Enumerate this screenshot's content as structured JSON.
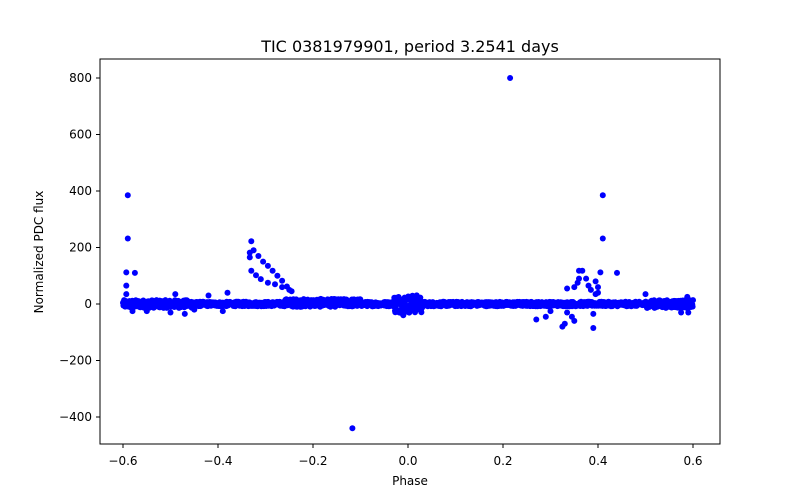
{
  "chart_data": {
    "type": "scatter",
    "title": "TIC 0381979901, period 3.2541 days",
    "xlabel": "Phase",
    "ylabel": "Normalized PDC flux",
    "xlim": [
      -0.66,
      0.66
    ],
    "ylim": [
      -500,
      860
    ],
    "xticks": [
      "-0.6",
      "-0.4",
      "-0.2",
      "0.0",
      "0.2",
      "0.4",
      "0.6"
    ],
    "xtick_values": [
      -0.6,
      -0.4,
      -0.2,
      0.0,
      0.2,
      0.4,
      0.6
    ],
    "yticks": [
      "-400",
      "-200",
      "0",
      "200",
      "400",
      "600",
      "800"
    ],
    "ytick_values": [
      -400,
      -200,
      0,
      200,
      400,
      600,
      800
    ],
    "grid": false,
    "legend": null,
    "marker_color": "#0000ff",
    "series": [
      {
        "name": "PDC flux",
        "baseline": {
          "x_range": [
            -0.6,
            0.6
          ],
          "center": 0,
          "scatter": 12
        },
        "outliers": [
          {
            "x": 0.215,
            "y": 800
          },
          {
            "x": -0.117,
            "y": -440
          },
          {
            "x": -0.59,
            "y": 385
          },
          {
            "x": -0.59,
            "y": 232
          },
          {
            "x": -0.593,
            "y": 112
          },
          {
            "x": -0.593,
            "y": 65
          },
          {
            "x": -0.593,
            "y": 35
          },
          {
            "x": -0.575,
            "y": 110
          },
          {
            "x": 0.41,
            "y": 385
          },
          {
            "x": 0.41,
            "y": 232
          },
          {
            "x": 0.44,
            "y": 110
          },
          {
            "x": 0.405,
            "y": 112
          },
          {
            "x": -0.33,
            "y": 222
          },
          {
            "x": -0.333,
            "y": 182
          },
          {
            "x": -0.333,
            "y": 165
          },
          {
            "x": -0.325,
            "y": 190
          },
          {
            "x": -0.315,
            "y": 170
          },
          {
            "x": -0.305,
            "y": 150
          },
          {
            "x": -0.295,
            "y": 135
          },
          {
            "x": -0.285,
            "y": 118
          },
          {
            "x": -0.275,
            "y": 100
          },
          {
            "x": -0.265,
            "y": 82
          },
          {
            "x": -0.255,
            "y": 62
          },
          {
            "x": -0.245,
            "y": 45
          },
          {
            "x": -0.33,
            "y": 118
          },
          {
            "x": -0.32,
            "y": 102
          },
          {
            "x": -0.31,
            "y": 88
          },
          {
            "x": -0.295,
            "y": 75
          },
          {
            "x": -0.28,
            "y": 70
          },
          {
            "x": -0.265,
            "y": 60
          },
          {
            "x": -0.25,
            "y": 50
          },
          {
            "x": 0.36,
            "y": 118
          },
          {
            "x": 0.367,
            "y": 118
          },
          {
            "x": 0.36,
            "y": 90
          },
          {
            "x": 0.357,
            "y": 75
          },
          {
            "x": 0.35,
            "y": 60
          },
          {
            "x": 0.375,
            "y": 90
          },
          {
            "x": 0.38,
            "y": 65
          },
          {
            "x": 0.385,
            "y": 50
          },
          {
            "x": 0.395,
            "y": 35
          },
          {
            "x": 0.4,
            "y": 60
          },
          {
            "x": 0.4,
            "y": 40
          },
          {
            "x": 0.395,
            "y": 80
          },
          {
            "x": 0.35,
            "y": -60
          },
          {
            "x": 0.345,
            "y": -45
          },
          {
            "x": 0.335,
            "y": -30
          },
          {
            "x": 0.325,
            "y": -80
          },
          {
            "x": 0.33,
            "y": -70
          },
          {
            "x": 0.39,
            "y": -35
          },
          {
            "x": 0.39,
            "y": -85
          },
          {
            "x": 0.3,
            "y": -25
          },
          {
            "x": 0.29,
            "y": -45
          },
          {
            "x": 0.27,
            "y": -55
          },
          {
            "x": 0.335,
            "y": 55
          },
          {
            "x": 0.5,
            "y": 35
          },
          {
            "x": 0.588,
            "y": 25
          },
          {
            "x": 0.59,
            "y": -30
          },
          {
            "x": 0.575,
            "y": -30
          },
          {
            "x": -0.01,
            "y": -40
          },
          {
            "x": -0.49,
            "y": 35
          },
          {
            "x": -0.38,
            "y": 40
          },
          {
            "x": -0.42,
            "y": 30
          },
          {
            "x": -0.45,
            "y": -20
          },
          {
            "x": -0.5,
            "y": -30
          },
          {
            "x": -0.39,
            "y": -25
          },
          {
            "x": -0.55,
            "y": -25
          },
          {
            "x": -0.58,
            "y": -25
          },
          {
            "x": -0.47,
            "y": -35
          }
        ]
      }
    ]
  }
}
